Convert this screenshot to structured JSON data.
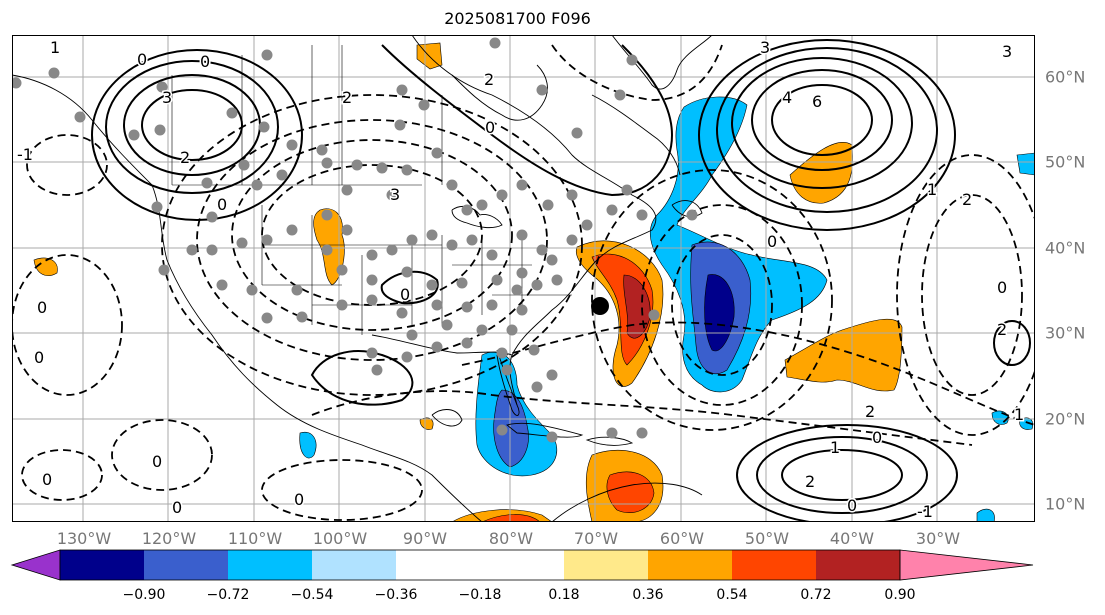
{
  "title": "2025081700 F096",
  "lon_labels": [
    "130°W",
    "120°W",
    "110°W",
    "100°W",
    "90°W",
    "80°W",
    "70°W",
    "60°W",
    "50°W",
    "40°W",
    "30°W"
  ],
  "lat_labels": [
    "60°N",
    "50°N",
    "40°N",
    "30°N",
    "20°N",
    "10°N"
  ],
  "colorbar": {
    "ticks": [
      "−0.90",
      "−0.72",
      "−0.54",
      "−0.36",
      "−0.18",
      "0.18",
      "0.36",
      "0.54",
      "0.72",
      "0.90"
    ],
    "colors": [
      "#9932cc",
      "#00008b",
      "#3a5fcd",
      "#00bfff",
      "#b0e2ff",
      "#ffffff",
      "#ffe98a",
      "#ffa500",
      "#ff4500",
      "#b22222",
      "#ff82ab"
    ]
  },
  "contour_labels": [
    {
      "id": "c1",
      "text": "0"
    },
    {
      "id": "c2",
      "text": "3"
    },
    {
      "id": "c3",
      "text": "2"
    },
    {
      "id": "c4",
      "text": "0"
    },
    {
      "id": "c5",
      "text": "1"
    },
    {
      "id": "c6",
      "text": "-1"
    },
    {
      "id": "c7",
      "text": "2"
    },
    {
      "id": "c8",
      "text": "3"
    },
    {
      "id": "c9",
      "text": "0"
    },
    {
      "id": "c10",
      "text": "0"
    },
    {
      "id": "c11",
      "text": "0"
    },
    {
      "id": "c12",
      "text": "0"
    },
    {
      "id": "c13",
      "text": "0"
    },
    {
      "id": "c14",
      "text": "0"
    },
    {
      "id": "c15",
      "text": "0"
    },
    {
      "id": "c16",
      "text": "4"
    },
    {
      "id": "c17",
      "text": "6"
    },
    {
      "id": "c18",
      "text": "1"
    },
    {
      "id": "c19",
      "text": "2"
    },
    {
      "id": "c20",
      "text": "0"
    },
    {
      "id": "c21",
      "text": "2"
    },
    {
      "id": "c22",
      "text": "3"
    },
    {
      "id": "c23",
      "text": "0"
    },
    {
      "id": "c24",
      "text": "1"
    },
    {
      "id": "c25",
      "text": "2"
    },
    {
      "id": "c26",
      "text": "0"
    },
    {
      "id": "c27",
      "text": "0"
    },
    {
      "id": "c28",
      "text": "-1"
    },
    {
      "id": "c29",
      "text": "2"
    },
    {
      "id": "c30",
      "text": "0"
    },
    {
      "id": "c31",
      "text": "2"
    },
    {
      "id": "c32",
      "text": "0"
    },
    {
      "id": "c33",
      "text": "3"
    },
    {
      "id": "c34",
      "text": "1"
    }
  ]
}
